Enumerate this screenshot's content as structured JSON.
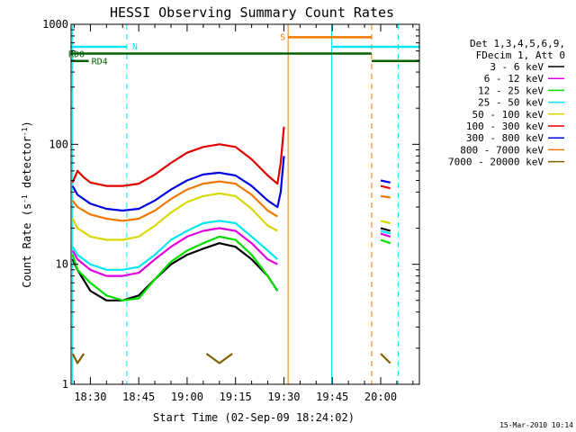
{
  "chart_data": {
    "type": "line",
    "title": "HESSI Observing Summary Count Rates",
    "xlabel": "Start Time (02-Sep-09 18:24:02)",
    "ylabel": "Count Rate (s⁻¹ detector⁻¹)",
    "xlim": [
      1104.03,
      1212
    ],
    "ylim": [
      1,
      1000
    ],
    "ylog": true,
    "x_unit": "minutes after 00:00 UT, 02-Sep-09",
    "x_ticks": [
      {
        "value": 1110,
        "label": "18:30"
      },
      {
        "value": 1125,
        "label": "18:45"
      },
      {
        "value": 1140,
        "label": "19:00"
      },
      {
        "value": 1155,
        "label": "19:15"
      },
      {
        "value": 1170,
        "label": "19:30"
      },
      {
        "value": 1185,
        "label": "19:45"
      },
      {
        "value": 1200,
        "label": "20:00"
      }
    ],
    "y_ticks": [
      {
        "value": 1,
        "label": "1"
      },
      {
        "value": 10,
        "label": "10"
      },
      {
        "value": 100,
        "label": "100"
      },
      {
        "value": 1000,
        "label": "1000"
      }
    ],
    "legend_header": [
      "Det 1,3,4,5,6,9,",
      "FDecim 1, Att 0"
    ],
    "legend_placement": "right",
    "series": [
      {
        "name": "3 - 6 keV",
        "color": "#000000",
        "segments": [
          [
            [
              1104.5,
              11
            ],
            [
              1106,
              9
            ],
            [
              1110,
              6
            ],
            [
              1115,
              5
            ],
            [
              1120,
              5
            ],
            [
              1125,
              5.5
            ],
            [
              1130,
              7.5
            ],
            [
              1135,
              10
            ],
            [
              1140,
              12
            ],
            [
              1145,
              13.5
            ],
            [
              1150,
              15
            ],
            [
              1155,
              14
            ],
            [
              1160,
              11
            ],
            [
              1165,
              8
            ],
            [
              1168,
              6
            ]
          ],
          [
            [
              1200,
              20
            ],
            [
              1203,
              19
            ]
          ]
        ]
      },
      {
        "name": "6 - 12 keV",
        "color": "#e000e0",
        "segments": [
          [
            [
              1104.5,
              13
            ],
            [
              1106,
              11
            ],
            [
              1110,
              9
            ],
            [
              1115,
              8
            ],
            [
              1120,
              8
            ],
            [
              1125,
              8.5
            ],
            [
              1130,
              11
            ],
            [
              1135,
              14
            ],
            [
              1140,
              17
            ],
            [
              1145,
              19
            ],
            [
              1150,
              20
            ],
            [
              1155,
              19
            ],
            [
              1160,
              15
            ],
            [
              1165,
              11
            ],
            [
              1168,
              10
            ]
          ],
          [
            [
              1200,
              18
            ],
            [
              1203,
              17
            ]
          ]
        ]
      },
      {
        "name": "12 - 25 keV",
        "color": "#00dd00",
        "segments": [
          [
            [
              1104.5,
              12
            ],
            [
              1106,
              9
            ],
            [
              1110,
              7
            ],
            [
              1115,
              5.5
            ],
            [
              1120,
              5
            ],
            [
              1125,
              5.2
            ],
            [
              1130,
              7.5
            ],
            [
              1135,
              10.5
            ],
            [
              1140,
              13
            ],
            [
              1145,
              15
            ],
            [
              1150,
              17
            ],
            [
              1155,
              16
            ],
            [
              1160,
              12
            ],
            [
              1165,
              8
            ],
            [
              1168,
              6
            ]
          ],
          [
            [
              1200,
              16
            ],
            [
              1203,
              15
            ]
          ]
        ]
      },
      {
        "name": "25 - 50 keV",
        "color": "#00e8f0",
        "segments": [
          [
            [
              1104.5,
              14
            ],
            [
              1106,
              12
            ],
            [
              1110,
              10
            ],
            [
              1115,
              9
            ],
            [
              1120,
              9
            ],
            [
              1125,
              9.5
            ],
            [
              1130,
              12
            ],
            [
              1135,
              16
            ],
            [
              1140,
              19
            ],
            [
              1145,
              22
            ],
            [
              1150,
              23
            ],
            [
              1155,
              22
            ],
            [
              1160,
              17
            ],
            [
              1165,
              13
            ],
            [
              1168,
              11
            ]
          ],
          [
            [
              1200,
              19
            ],
            [
              1203,
              18
            ]
          ]
        ]
      },
      {
        "name": "50 - 100 keV",
        "color": "#d8d800",
        "segments": [
          [
            [
              1104.5,
              24
            ],
            [
              1106,
              20
            ],
            [
              1110,
              17
            ],
            [
              1115,
              16
            ],
            [
              1120,
              16
            ],
            [
              1125,
              17
            ],
            [
              1130,
              21
            ],
            [
              1135,
              27
            ],
            [
              1140,
              33
            ],
            [
              1145,
              37
            ],
            [
              1150,
              39
            ],
            [
              1155,
              37
            ],
            [
              1160,
              29
            ],
            [
              1165,
              21
            ],
            [
              1168,
              19
            ]
          ],
          [
            [
              1200,
              23
            ],
            [
              1203,
              22
            ]
          ]
        ]
      },
      {
        "name": "100 - 300 keV",
        "color": "#e00000",
        "segments": [
          [
            [
              1104.5,
              48
            ],
            [
              1106,
              60
            ],
            [
              1108,
              53
            ],
            [
              1110,
              48
            ],
            [
              1115,
              45
            ],
            [
              1120,
              45
            ],
            [
              1125,
              47
            ],
            [
              1130,
              56
            ],
            [
              1135,
              70
            ],
            [
              1140,
              85
            ],
            [
              1145,
              95
            ],
            [
              1150,
              100
            ],
            [
              1155,
              95
            ],
            [
              1160,
              75
            ],
            [
              1165,
              55
            ],
            [
              1168,
              47
            ],
            [
              1169,
              70
            ],
            [
              1170,
              140
            ]
          ],
          [
            [
              1200,
              45
            ],
            [
              1203,
              43
            ]
          ]
        ]
      },
      {
        "name": "300 - 800 keV",
        "color": "#0000e0",
        "segments": [
          [
            [
              1104.5,
              45
            ],
            [
              1106,
              38
            ],
            [
              1110,
              32
            ],
            [
              1115,
              29
            ],
            [
              1120,
              28
            ],
            [
              1125,
              29
            ],
            [
              1130,
              34
            ],
            [
              1135,
              42
            ],
            [
              1140,
              50
            ],
            [
              1145,
              56
            ],
            [
              1150,
              58
            ],
            [
              1155,
              55
            ],
            [
              1160,
              45
            ],
            [
              1165,
              34
            ],
            [
              1168,
              30
            ],
            [
              1169,
              40
            ],
            [
              1170,
              80
            ]
          ],
          [
            [
              1200,
              50
            ],
            [
              1203,
              48
            ]
          ]
        ]
      },
      {
        "name": "800 - 7000 keV",
        "color": "#f07800",
        "segments": [
          [
            [
              1104.5,
              34
            ],
            [
              1106,
              30
            ],
            [
              1110,
              26
            ],
            [
              1115,
              24
            ],
            [
              1120,
              23
            ],
            [
              1125,
              24
            ],
            [
              1130,
              28
            ],
            [
              1135,
              35
            ],
            [
              1140,
              42
            ],
            [
              1145,
              47
            ],
            [
              1150,
              49
            ],
            [
              1155,
              47
            ],
            [
              1160,
              38
            ],
            [
              1165,
              28
            ],
            [
              1168,
              25
            ]
          ],
          [
            [
              1200,
              37
            ],
            [
              1203,
              36
            ]
          ]
        ]
      },
      {
        "name": "7000 - 20000 keV",
        "color": "#806000",
        "segments": [
          [
            [
              1104.5,
              1.8
            ],
            [
              1106,
              1.5
            ],
            [
              1108,
              1.8
            ]
          ],
          [
            [
              1146,
              1.8
            ],
            [
              1150,
              1.5
            ],
            [
              1154,
              1.8
            ]
          ],
          [
            [
              1200,
              1.8
            ],
            [
              1203,
              1.5
            ]
          ]
        ]
      }
    ],
    "flag_lines": [
      {
        "label": "N",
        "color": "#00e8f0",
        "y": 650,
        "segments": [
          [
            1104.03,
            1121.3
          ],
          [
            1184.8,
            1212
          ]
        ]
      },
      {
        "label": "S",
        "color": "#f07800",
        "y": 780,
        "segments": [
          [
            1171.3,
            1197.2
          ]
        ]
      },
      {
        "label": "RD0",
        "color": "#006000",
        "y": 570,
        "segments": [
          [
            1104.03,
            1197.2
          ]
        ]
      },
      {
        "label": "RD4",
        "color": "#006000",
        "y": 495,
        "segments": [
          [
            1104.03,
            1109.5
          ],
          [
            1197.2,
            1212
          ]
        ]
      }
    ],
    "vertical_markers": [
      {
        "x": 1104.5,
        "color": "#00e8f0",
        "style": "solid"
      },
      {
        "x": 1121.3,
        "color": "#00e8f0",
        "style": "dashed"
      },
      {
        "x": 1171.3,
        "color": "#f07800",
        "style": "solid"
      },
      {
        "x": 1184.8,
        "color": "#00e8f0",
        "style": "solid"
      },
      {
        "x": 1197.2,
        "color": "#f07800",
        "style": "dashed"
      },
      {
        "x": 1205.4,
        "color": "#00e8f0",
        "style": "dashed"
      }
    ],
    "timestamp": "15-Mar-2010 10:14"
  }
}
